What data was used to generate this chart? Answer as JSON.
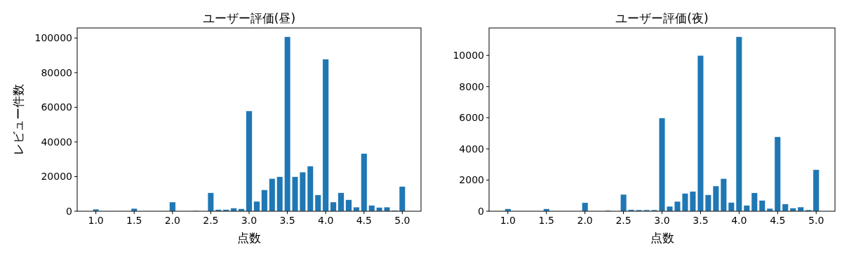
{
  "chart_data": [
    {
      "type": "bar",
      "title": "ユーザー評価(昼)",
      "xlabel": "点数",
      "ylabel": "レビュー件数",
      "color": "#1f77b4",
      "x": [
        1.0,
        1.5,
        2.0,
        2.3,
        2.5,
        2.6,
        2.7,
        2.8,
        2.9,
        3.0,
        3.1,
        3.2,
        3.3,
        3.4,
        3.5,
        3.6,
        3.7,
        3.8,
        3.9,
        4.0,
        4.1,
        4.2,
        4.3,
        4.4,
        4.5,
        4.6,
        4.7,
        4.8,
        4.9,
        5.0
      ],
      "values": [
        1200,
        1600,
        5300,
        400,
        10700,
        1000,
        1000,
        1900,
        1500,
        57900,
        5700,
        12400,
        18900,
        19900,
        100800,
        19900,
        22600,
        26100,
        9400,
        87800,
        5300,
        10700,
        6700,
        2400,
        33400,
        3400,
        2200,
        2400,
        500,
        14300
      ],
      "xlim": [
        0.756,
        5.244
      ],
      "ylim": [
        0,
        105800
      ],
      "xticks": [
        {
          "value": 1.0,
          "label": "1.0"
        },
        {
          "value": 1.5,
          "label": "1.5"
        },
        {
          "value": 2.0,
          "label": "2.0"
        },
        {
          "value": 2.5,
          "label": "2.5"
        },
        {
          "value": 3.0,
          "label": "3.0"
        },
        {
          "value": 3.5,
          "label": "3.5"
        },
        {
          "value": 4.0,
          "label": "4.0"
        },
        {
          "value": 4.5,
          "label": "4.5"
        },
        {
          "value": 5.0,
          "label": "5.0"
        }
      ],
      "yticks": [
        0,
        20000,
        40000,
        60000,
        80000,
        100000
      ]
    },
    {
      "type": "bar",
      "title": "ユーザー評価(夜)",
      "xlabel": "点数",
      "color": "#1f77b4",
      "x": [
        1.0,
        1.5,
        2.0,
        2.3,
        2.5,
        2.6,
        2.7,
        2.8,
        2.9,
        3.0,
        3.1,
        3.2,
        3.3,
        3.4,
        3.5,
        3.6,
        3.7,
        3.8,
        3.9,
        4.0,
        4.1,
        4.2,
        4.3,
        4.4,
        4.5,
        4.6,
        4.7,
        4.8,
        4.9,
        5.0
      ],
      "values": [
        160,
        160,
        550,
        50,
        1080,
        100,
        90,
        90,
        90,
        5980,
        315,
        630,
        1150,
        1270,
        10000,
        1060,
        1620,
        2100,
        570,
        11200,
        375,
        1180,
        700,
        180,
        4780,
        465,
        210,
        270,
        90,
        2670
      ],
      "xlim": [
        0.756,
        5.244
      ],
      "ylim": [
        0,
        11760
      ],
      "xticks": [
        {
          "value": 1.0,
          "label": "1.0"
        },
        {
          "value": 1.5,
          "label": "1.5"
        },
        {
          "value": 2.0,
          "label": "2.0"
        },
        {
          "value": 2.5,
          "label": "2.5"
        },
        {
          "value": 3.0,
          "label": "3.0"
        },
        {
          "value": 3.5,
          "label": "3.5"
        },
        {
          "value": 4.0,
          "label": "4.0"
        },
        {
          "value": 4.5,
          "label": "4.5"
        },
        {
          "value": 5.0,
          "label": "5.0"
        }
      ],
      "yticks": [
        0,
        2000,
        4000,
        6000,
        8000,
        10000
      ]
    }
  ]
}
